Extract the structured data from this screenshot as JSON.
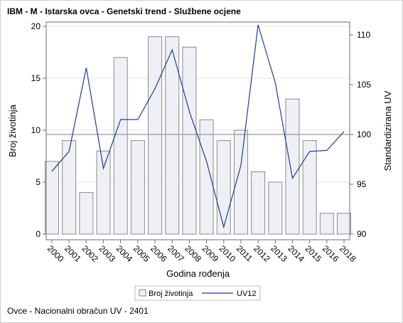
{
  "title": "IBM - M - Istarska ovca - Genetski trend - Službene ocjene",
  "footnote": "Ovce - Nacionalni obračun UV - 2401",
  "colors": {
    "bar_fill": "#eef0f5",
    "bar_stroke": "#8a8a8a",
    "line": "#1f3f8f",
    "reference_line": "#a8a8a8",
    "axis": "#6d6d6d"
  },
  "chart_data": {
    "type": "bar",
    "xlabel": "Godina rođenja",
    "ylabel": "Broj životinja",
    "y2label": "Standardizirana UV",
    "categories": [
      "2000",
      "2001",
      "2002",
      "2003",
      "2004",
      "2005",
      "2006",
      "2007",
      "2008",
      "2009",
      "2010",
      "2011",
      "2012",
      "2013",
      "2014",
      "2015",
      "2016",
      "2018"
    ],
    "series": [
      {
        "name": "Broj životinja",
        "type": "bar",
        "axis": "left",
        "values": [
          7,
          9,
          4,
          8,
          17,
          9,
          19,
          19,
          18,
          11,
          9,
          10,
          6,
          5,
          13,
          9,
          2,
          2
        ]
      },
      {
        "name": "UV12",
        "type": "line",
        "axis": "right",
        "values": [
          96.3,
          98.3,
          106.7,
          96.6,
          101.5,
          101.5,
          104.6,
          108.5,
          102.3,
          97.3,
          90.7,
          96.9,
          111.0,
          105.2,
          95.6,
          98.3,
          98.4,
          100.3
        ]
      }
    ],
    "ylim": [
      0,
      20
    ],
    "yticks": [
      0,
      5,
      10,
      15,
      20
    ],
    "y2lim": [
      90,
      111
    ],
    "y2ticks": [
      90,
      95,
      100,
      105,
      110
    ],
    "reference_line_y2": 100,
    "grid": "horizontal",
    "legend": {
      "position": "bottom",
      "entries": [
        "Broj životinja",
        "UV12"
      ]
    }
  }
}
